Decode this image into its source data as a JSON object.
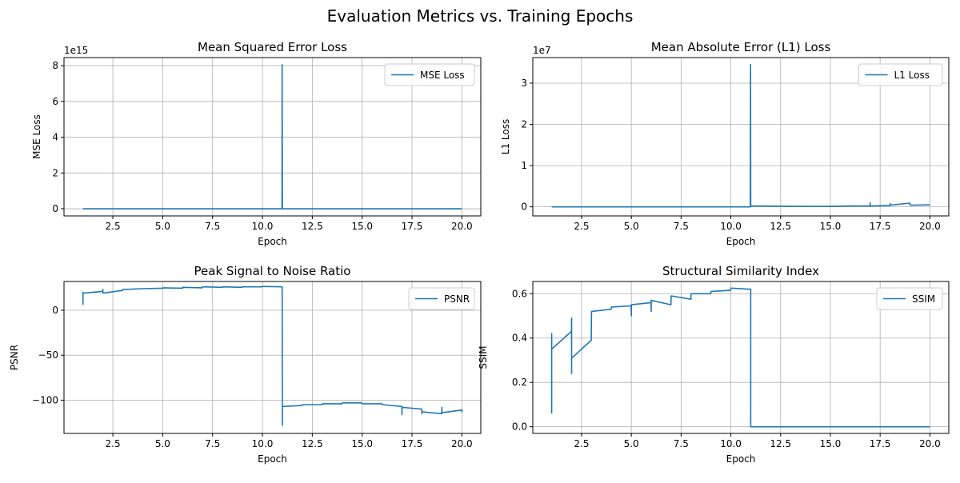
{
  "figure": {
    "suptitle": "Evaluation Metrics vs. Training Epochs"
  },
  "colors": {
    "line": "#1f77b4",
    "grid": "#b0b0b0",
    "axes": "#000000",
    "legend_border": "#cccccc"
  },
  "chart_data": [
    {
      "type": "line",
      "title": "Mean Squared Error Loss",
      "xlabel": "Epoch",
      "ylabel": "MSE Loss",
      "offset_label": "1e15",
      "grid": true,
      "legend": "upper-right",
      "xlim": [
        0.05,
        20.95
      ],
      "ylim": [
        -0.4,
        8.45
      ],
      "xticks": [
        2.5,
        5.0,
        7.5,
        10.0,
        12.5,
        15.0,
        17.5,
        20.0
      ],
      "xticklabels": [
        "2.5",
        "5.0",
        "7.5",
        "10.0",
        "12.5",
        "15.0",
        "17.5",
        "20.0"
      ],
      "yticks": [
        0,
        2,
        4,
        6,
        8
      ],
      "yticklabels": [
        "0",
        "2",
        "4",
        "6",
        "8"
      ],
      "series": [
        {
          "name": "MSE Loss",
          "x": [
            1,
            10.97,
            10.98,
            10.99,
            11.0,
            11.0,
            11.01,
            20.0
          ],
          "y": [
            0,
            0,
            0,
            8.05,
            0.05,
            0,
            0,
            0
          ]
        }
      ]
    },
    {
      "type": "line",
      "title": "Mean Absolute Error (L1) Loss",
      "xlabel": "Epoch",
      "ylabel": "L1 Loss",
      "offset_label": "1e7",
      "grid": true,
      "legend": "upper-right",
      "xlim": [
        0.05,
        20.95
      ],
      "ylim": [
        -0.22,
        3.62
      ],
      "xticks": [
        2.5,
        5.0,
        7.5,
        10.0,
        12.5,
        15.0,
        17.5,
        20.0
      ],
      "xticklabels": [
        "2.5",
        "5.0",
        "7.5",
        "10.0",
        "12.5",
        "15.0",
        "17.5",
        "20.0"
      ],
      "yticks": [
        0,
        1,
        2,
        3
      ],
      "yticklabels": [
        "0",
        "1",
        "2",
        "3"
      ],
      "series": [
        {
          "name": "L1 Loss",
          "x": [
            1,
            10.97,
            10.98,
            10.99,
            11.0,
            11.0,
            13,
            15,
            16,
            16.99,
            17.0,
            17.0,
            17.01,
            17.99,
            18.0,
            18.0,
            18.01,
            18.99,
            19.0,
            19.0,
            19.01,
            20.0
          ],
          "y": [
            0,
            0,
            0,
            3.45,
            0.02,
            0.02,
            0.015,
            0.01,
            0.02,
            0.02,
            0.1,
            0.02,
            0.02,
            0.03,
            0.08,
            0.03,
            0.04,
            0.09,
            0.08,
            0.04,
            0.04,
            0.05
          ]
        }
      ]
    },
    {
      "type": "line",
      "title": "Peak Signal to Noise Ratio",
      "xlabel": "Epoch",
      "ylabel": "PSNR",
      "grid": true,
      "legend": "upper-right",
      "xlim": [
        0.05,
        20.95
      ],
      "ylim": [
        -137,
        32
      ],
      "xticks": [
        2.5,
        5.0,
        7.5,
        10.0,
        12.5,
        15.0,
        17.5,
        20.0
      ],
      "xticklabels": [
        "2.5",
        "5.0",
        "7.5",
        "10.0",
        "12.5",
        "15.0",
        "17.5",
        "20.0"
      ],
      "yticks": [
        -100,
        -50,
        0
      ],
      "yticklabels": [
        "−100",
        "−50",
        "0"
      ],
      "series": [
        {
          "name": "PSNR",
          "x": [
            1,
            1,
            1,
            1.99,
            2,
            2,
            2.99,
            3,
            3.99,
            4,
            4.99,
            5,
            5.99,
            6,
            6.99,
            7,
            7.99,
            8,
            8.99,
            9,
            9.99,
            10,
            10.99,
            11,
            11,
            11.01,
            11.99,
            12,
            12.99,
            13,
            13.99,
            14,
            14.99,
            15,
            15.99,
            16,
            16.99,
            17,
            17,
            17.01,
            17.99,
            18,
            18,
            18.01,
            18.99,
            19,
            19,
            19.01,
            19.99,
            20,
            20
          ],
          "y": [
            6,
            20,
            19,
            21,
            23,
            19,
            22,
            23,
            24,
            24,
            24.5,
            25,
            24.5,
            25.5,
            25,
            26,
            25.5,
            26,
            25.5,
            26,
            26,
            26.5,
            26,
            -128,
            -107,
            -107,
            -106,
            -105,
            -105,
            -104,
            -104,
            -103,
            -103,
            -104,
            -104,
            -105,
            -107,
            -116,
            -108,
            -108,
            -110,
            -115,
            -113,
            -113,
            -115,
            -108,
            -114,
            -114,
            -111,
            -113,
            -110
          ]
        }
      ]
    },
    {
      "type": "line",
      "title": "Structural Similarity Index",
      "xlabel": "Epoch",
      "ylabel": "SSIM",
      "grid": true,
      "legend": "upper-right",
      "xlim": [
        0.05,
        20.95
      ],
      "ylim": [
        -0.03,
        0.655
      ],
      "xticks": [
        2.5,
        5.0,
        7.5,
        10.0,
        12.5,
        15.0,
        17.5,
        20.0
      ],
      "xticklabels": [
        "2.5",
        "5.0",
        "7.5",
        "10.0",
        "12.5",
        "15.0",
        "17.5",
        "20.0"
      ],
      "yticks": [
        0.0,
        0.2,
        0.4,
        0.6
      ],
      "yticklabels": [
        "0.0",
        "0.2",
        "0.4",
        "0.6"
      ],
      "series": [
        {
          "name": "SSIM",
          "x": [
            1,
            1,
            1,
            1.99,
            2,
            2,
            2,
            2.01,
            2.99,
            3,
            3,
            3.01,
            3.99,
            4,
            4.99,
            5,
            5,
            5.01,
            5.99,
            6,
            6,
            6.01,
            6.99,
            7,
            7.99,
            8,
            8.99,
            9,
            9.99,
            10,
            10.99,
            11,
            11,
            20.0
          ],
          "y": [
            0.06,
            0.42,
            0.35,
            0.43,
            0.49,
            0.24,
            0.31,
            0.31,
            0.39,
            0.52,
            0.52,
            0.52,
            0.53,
            0.54,
            0.545,
            0.5,
            0.55,
            0.55,
            0.56,
            0.52,
            0.57,
            0.57,
            0.55,
            0.59,
            0.575,
            0.6,
            0.6,
            0.61,
            0.615,
            0.625,
            0.62,
            0.62,
            0.0,
            0.0
          ]
        }
      ]
    }
  ]
}
